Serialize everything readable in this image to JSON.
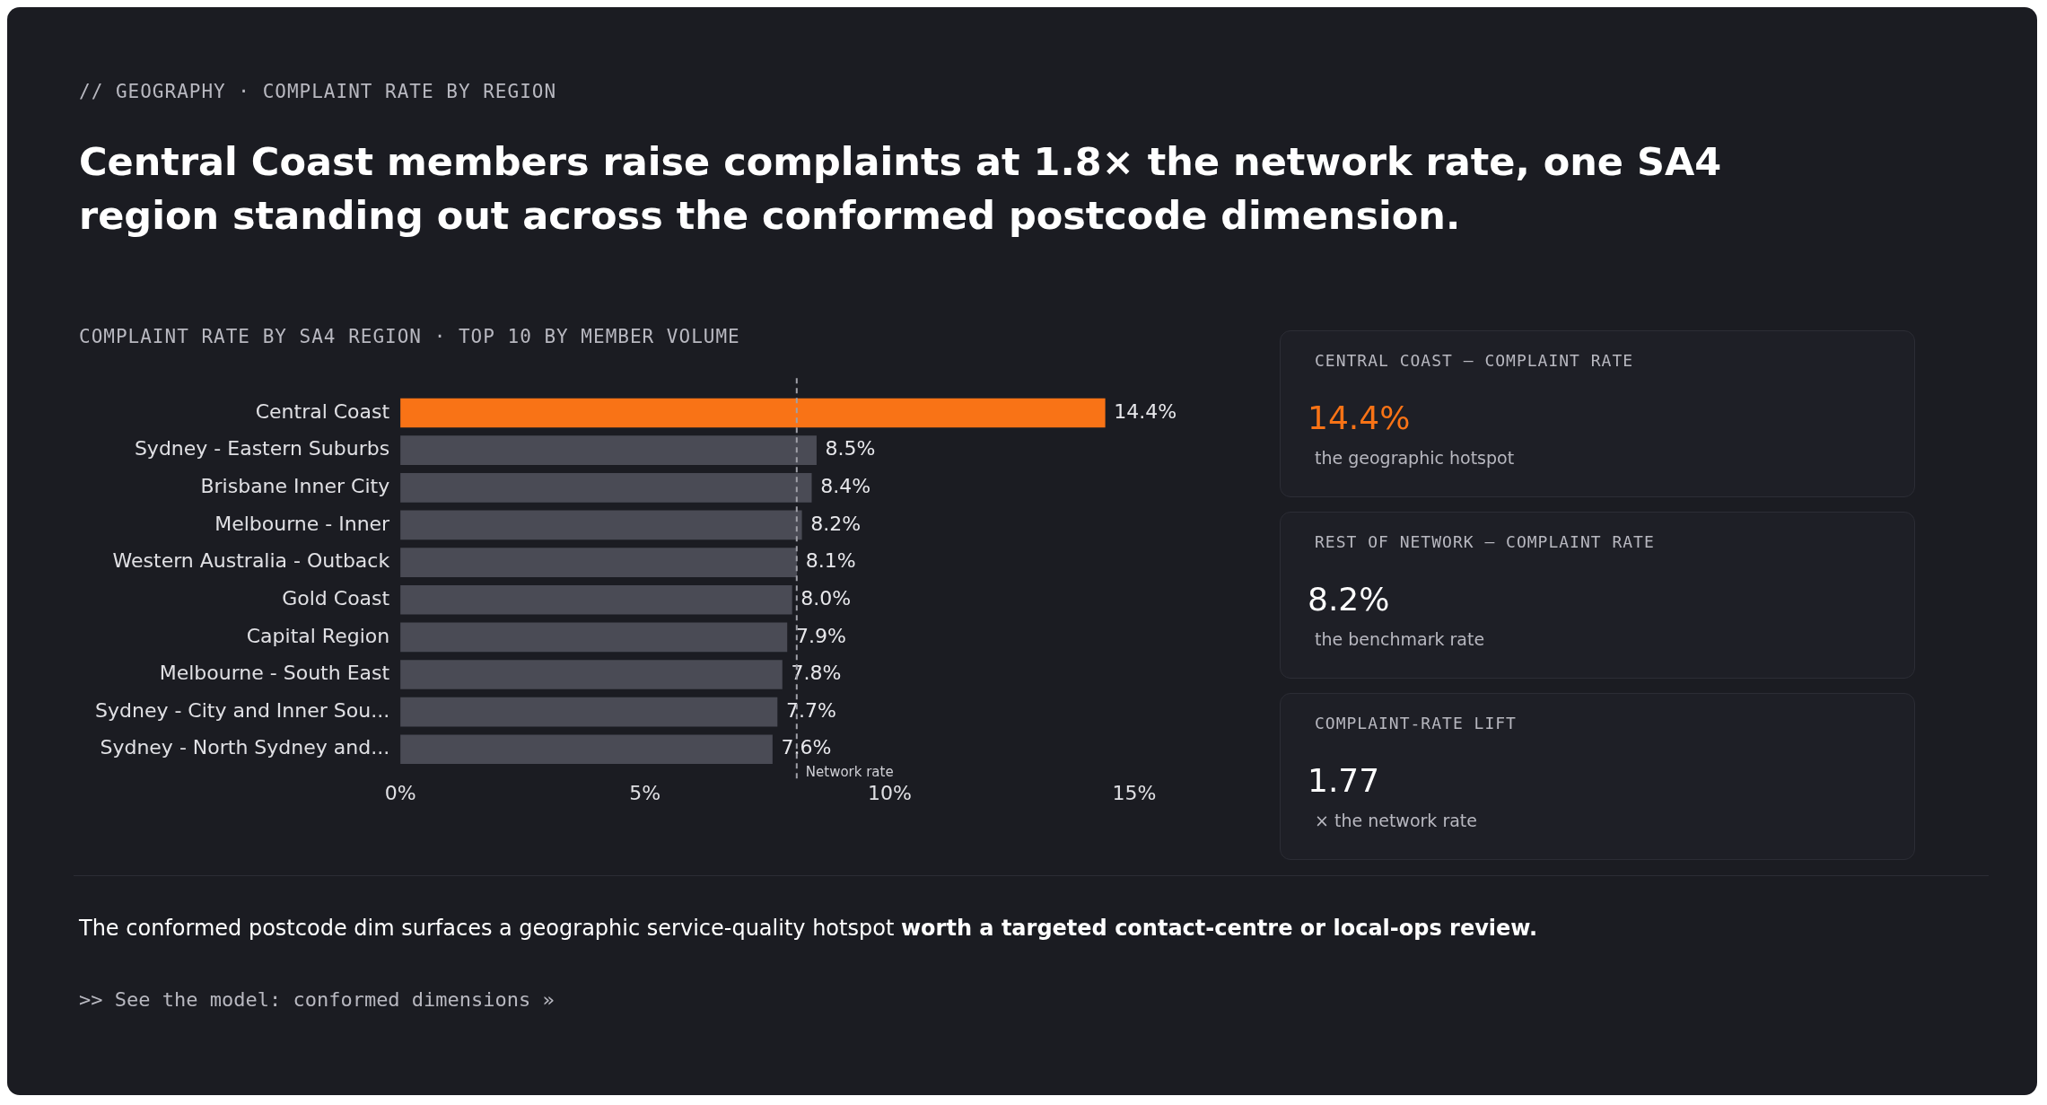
{
  "chart_data": {
    "type": "bar",
    "orientation": "horizontal",
    "subtitle": "// GEOGRAPHY · COMPLAINT RATE BY REGION",
    "title": "Central Coast members raise complaints at 1.8× the network rate, one SA4 region standing out across the conformed postcode dimension.",
    "categories": [
      "Central Coast",
      "Sydney - Eastern Suburbs",
      "Brisbane Inner City",
      "Melbourne - Inner",
      "Western Australia - Outback",
      "Gold Coast",
      "Capital Region",
      "Melbourne - South East",
      "Sydney - City and Inner Sou...",
      "Sydney - North Sydney and..."
    ],
    "values": [
      14.4,
      8.5,
      8.4,
      8.2,
      8.1,
      8.0,
      7.9,
      7.8,
      7.7,
      7.6
    ],
    "value_labels": [
      "14.4%",
      "8.5%",
      "8.4%",
      "8.2%",
      "8.1%",
      "8.0%",
      "7.9%",
      "7.8%",
      "7.7%",
      "7.6%"
    ],
    "colors": [
      "#f97316",
      "#4a4b55",
      "#4a4b55",
      "#4a4b55",
      "#4a4b55",
      "#4a4b55",
      "#4a4b55",
      "#4a4b55",
      "#4a4b55",
      "#4a4b55"
    ],
    "xlim": [
      0,
      15
    ],
    "xticks": [
      {
        "value": 0,
        "label": "0%"
      },
      {
        "value": 5,
        "label": "5%"
      },
      {
        "value": 10,
        "label": "10%"
      },
      {
        "value": 15,
        "label": "15%"
      }
    ],
    "ref_lines": [
      {
        "axis": "x",
        "value": 8.1,
        "label": "Network rate",
        "color": "#a0a0a8",
        "line_style": "dashed"
      }
    ],
    "grid": false,
    "legend": false,
    "annotations": [
      "COMPLAINT RATE BY SA4 REGION · TOP 10 BY MEMBER VOLUME",
      "CENTRAL COAST — COMPLAINT RATE",
      "14.4%",
      "the geographic hotspot",
      "REST OF NETWORK — COMPLAINT RATE",
      "8.2%",
      "the benchmark rate",
      "COMPLAINT-RATE LIFT",
      "1.77",
      "× the network rate",
      "The conformed postcode dim surfaces a geographic service-quality hotspot ",
      "worth a targeted contact-centre or local-ops review.",
      ">> See the model: conformed dimensions »"
    ]
  }
}
